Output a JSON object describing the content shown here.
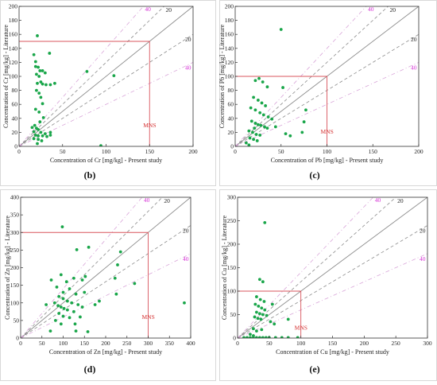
{
  "chart_data": [
    {
      "panel": "(b)",
      "type": "scatter",
      "xlabel": "Concentration of Cr [mg/kg] - Present study",
      "ylabel": "Concentration of Cr [mg/kg] - Literature",
      "xlim": [
        0,
        200
      ],
      "ylim": [
        0,
        200
      ],
      "xticks": [
        0,
        50,
        100,
        150,
        200
      ],
      "yticks": [
        0,
        20,
        40,
        60,
        80,
        100,
        120,
        140,
        160,
        180,
        200
      ],
      "mns": 150,
      "mns_label": "MNS",
      "band_labels": {
        "inner": "20",
        "outer": "40"
      },
      "points": [
        [
          21,
          158
        ],
        [
          17,
          131
        ],
        [
          19,
          121
        ],
        [
          35,
          133
        ],
        [
          19,
          114
        ],
        [
          22,
          113
        ],
        [
          24,
          108
        ],
        [
          27,
          108
        ],
        [
          30,
          105
        ],
        [
          20,
          103
        ],
        [
          23,
          100
        ],
        [
          25,
          92
        ],
        [
          21,
          90
        ],
        [
          27,
          89
        ],
        [
          31,
          88
        ],
        [
          36,
          88
        ],
        [
          41,
          90
        ],
        [
          20,
          80
        ],
        [
          23,
          76
        ],
        [
          25,
          70
        ],
        [
          27,
          61
        ],
        [
          19,
          53
        ],
        [
          23,
          49
        ],
        [
          28,
          41
        ],
        [
          24,
          35
        ],
        [
          18,
          30
        ],
        [
          15,
          27
        ],
        [
          20,
          26
        ],
        [
          22,
          24
        ],
        [
          17,
          21
        ],
        [
          25,
          20
        ],
        [
          30,
          18
        ],
        [
          36,
          20
        ],
        [
          19,
          16
        ],
        [
          22,
          15
        ],
        [
          27,
          15
        ],
        [
          32,
          14
        ],
        [
          36,
          16
        ],
        [
          17,
          11
        ],
        [
          22,
          10
        ],
        [
          26,
          8
        ],
        [
          21,
          4
        ],
        [
          78,
          107
        ],
        [
          109,
          101
        ],
        [
          94,
          1
        ]
      ]
    },
    {
      "panel": "(c)",
      "type": "scatter",
      "xlabel": "Concentration of Pb [mg/kg] - Present study",
      "ylabel": "Concentration of Pb [mg/kg] - Literature",
      "xlim": [
        0,
        200
      ],
      "ylim": [
        0,
        200
      ],
      "xticks": [
        0,
        50,
        100,
        150,
        200
      ],
      "yticks": [
        0,
        20,
        40,
        60,
        80,
        100,
        120,
        140,
        160,
        180,
        200
      ],
      "mns": 100,
      "mns_label": "MNS",
      "band_labels": {
        "inner": "20",
        "outer": "40"
      },
      "points": [
        [
          50,
          167
        ],
        [
          26,
          97
        ],
        [
          22,
          94
        ],
        [
          30,
          92
        ],
        [
          35,
          85
        ],
        [
          52,
          84
        ],
        [
          20,
          70
        ],
        [
          25,
          66
        ],
        [
          29,
          62
        ],
        [
          33,
          58
        ],
        [
          17,
          55
        ],
        [
          22,
          52
        ],
        [
          27,
          48
        ],
        [
          31,
          45
        ],
        [
          36,
          42
        ],
        [
          40,
          39
        ],
        [
          18,
          36
        ],
        [
          22,
          33
        ],
        [
          25,
          31
        ],
        [
          28,
          30
        ],
        [
          32,
          28
        ],
        [
          35,
          26
        ],
        [
          21,
          26
        ],
        [
          15,
          22
        ],
        [
          19,
          20
        ],
        [
          23,
          17
        ],
        [
          27,
          16
        ],
        [
          16,
          12
        ],
        [
          20,
          10
        ],
        [
          24,
          8
        ],
        [
          12,
          5
        ],
        [
          15,
          2
        ],
        [
          44,
          28
        ],
        [
          55,
          18
        ],
        [
          60,
          15
        ],
        [
          75,
          35
        ],
        [
          77,
          52
        ],
        [
          73,
          20
        ]
      ]
    },
    {
      "panel": "(d)",
      "type": "scatter",
      "xlabel": "Concentration of Zn [mg/kg] - Present study",
      "ylabel": "Concentration of Zn [mg/kg] - Literature",
      "xlim": [
        0,
        400
      ],
      "ylim": [
        0,
        400
      ],
      "xticks": [
        0,
        50,
        100,
        150,
        200,
        250,
        300,
        350,
        400
      ],
      "yticks": [
        0,
        50,
        100,
        150,
        200,
        250,
        300,
        350,
        400
      ],
      "mns": 300,
      "mns_label": "MNS",
      "band_labels": {
        "inner": "20",
        "outer": "40"
      },
      "points": [
        [
          98,
          316
        ],
        [
          132,
          251
        ],
        [
          160,
          258
        ],
        [
          228,
          208
        ],
        [
          235,
          245
        ],
        [
          72,
          165
        ],
        [
          95,
          180
        ],
        [
          125,
          170
        ],
        [
          108,
          160
        ],
        [
          145,
          165
        ],
        [
          152,
          175
        ],
        [
          85,
          145
        ],
        [
          100,
          130
        ],
        [
          115,
          140
        ],
        [
          130,
          125
        ],
        [
          150,
          130
        ],
        [
          90,
          118
        ],
        [
          100,
          112
        ],
        [
          110,
          105
        ],
        [
          120,
          100
        ],
        [
          135,
          95
        ],
        [
          145,
          88
        ],
        [
          80,
          100
        ],
        [
          88,
          92
        ],
        [
          95,
          88
        ],
        [
          102,
          84
        ],
        [
          110,
          80
        ],
        [
          125,
          75
        ],
        [
          90,
          70
        ],
        [
          100,
          62
        ],
        [
          115,
          58
        ],
        [
          140,
          60
        ],
        [
          82,
          50
        ],
        [
          95,
          40
        ],
        [
          128,
          40
        ],
        [
          60,
          95
        ],
        [
          70,
          20
        ],
        [
          130,
          20
        ],
        [
          158,
          18
        ],
        [
          175,
          95
        ],
        [
          185,
          105
        ],
        [
          222,
          170
        ],
        [
          225,
          125
        ],
        [
          268,
          155
        ],
        [
          385,
          100
        ]
      ]
    },
    {
      "panel": "(e)",
      "type": "scatter",
      "xlabel": "Concentration of Cu [mg/kg] - Present study",
      "ylabel": "Concentration of Cu [mg/kg] - Literature",
      "xlim": [
        0,
        300
      ],
      "ylim": [
        0,
        300
      ],
      "xticks": [
        0,
        50,
        100,
        150,
        200,
        250,
        300
      ],
      "yticks": [
        0,
        50,
        100,
        150,
        200,
        250,
        300
      ],
      "mns": 100,
      "mns_label": "MNS",
      "band_labels": {
        "inner": "20",
        "outer": "40"
      },
      "points": [
        [
          43,
          246
        ],
        [
          35,
          125
        ],
        [
          40,
          120
        ],
        [
          30,
          88
        ],
        [
          36,
          82
        ],
        [
          42,
          78
        ],
        [
          28,
          72
        ],
        [
          33,
          68
        ],
        [
          38,
          64
        ],
        [
          43,
          60
        ],
        [
          30,
          55
        ],
        [
          35,
          52
        ],
        [
          40,
          50
        ],
        [
          46,
          48
        ],
        [
          27,
          45
        ],
        [
          32,
          42
        ],
        [
          37,
          40
        ],
        [
          52,
          35
        ],
        [
          58,
          30
        ],
        [
          55,
          72
        ],
        [
          25,
          20
        ],
        [
          30,
          15
        ],
        [
          38,
          18
        ],
        [
          20,
          8
        ],
        [
          25,
          5
        ],
        [
          10,
          1
        ],
        [
          15,
          1
        ],
        [
          20,
          1
        ],
        [
          25,
          1
        ],
        [
          30,
          1
        ],
        [
          35,
          1
        ],
        [
          40,
          1
        ],
        [
          45,
          1
        ],
        [
          50,
          1
        ],
        [
          60,
          1
        ],
        [
          70,
          1
        ],
        [
          80,
          1
        ],
        [
          95,
          1
        ],
        [
          80,
          40
        ]
      ]
    }
  ],
  "colors": {
    "points": "#1aa64a",
    "identity": "#8c8c8c",
    "band20": "#8c8c8c",
    "band40": "#d9a6d9",
    "band40_label": "#d62fd6",
    "mns": "#d9545c",
    "mns_label": "#d43030"
  }
}
